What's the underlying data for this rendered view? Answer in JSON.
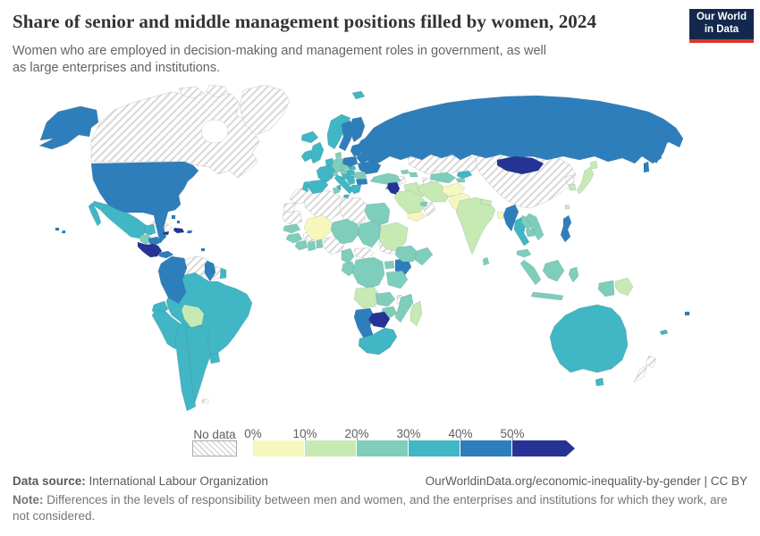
{
  "header": {
    "title": "Share of senior and middle management positions filled by women, 2024",
    "subtitle": "Women who are employed in decision-making and management roles in government, as well as large enterprises and institutions.",
    "logo": {
      "line1": "Our World",
      "line2": "in Data",
      "bg_color": "#12294d",
      "accent_color": "#d93a2b"
    }
  },
  "legend": {
    "no_data_label": "No data",
    "ticks": [
      "0%",
      "10%",
      "20%",
      "30%",
      "40%",
      "50%"
    ]
  },
  "footer": {
    "source_label": "Data source:",
    "source_value": " International Labour Organization",
    "link_text": "OurWorldinData.org/economic-inequality-by-gender | CC BY",
    "note_label": "Note:",
    "note_value": " Differences in the levels of responsibility between men and women, and the enterprises and institutions for which they work, are not considered."
  },
  "chart_data": {
    "type": "heatmap",
    "subtype": "world-choropleth",
    "title": "Share of senior and middle management positions filled by women, 2024",
    "unit": "%",
    "legend_position": "bottom",
    "bins": [
      {
        "id": "b0",
        "range": "0-10%",
        "color": "#f6f7bd"
      },
      {
        "id": "b1",
        "range": "10-20%",
        "color": "#c7e9b4"
      },
      {
        "id": "b2",
        "range": "20-30%",
        "color": "#7fcdbb"
      },
      {
        "id": "b3",
        "range": "30-40%",
        "color": "#41b6c4"
      },
      {
        "id": "b4",
        "range": "40-50%",
        "color": "#2e7ebc"
      },
      {
        "id": "b5",
        "range": "50%+",
        "color": "#253494"
      },
      {
        "id": "nodata",
        "range": "No data",
        "color": "hatch"
      }
    ],
    "countries_by_bin": {
      "b0": [
        "mali",
        "yemen",
        "afghanistan",
        "pakistan",
        "bangladesh"
      ],
      "b1": [
        "bolivia",
        "sudan",
        "angola",
        "madagascar",
        "saudi_arabia",
        "iraq",
        "iran",
        "india",
        "nepal",
        "japan",
        "hokkaido",
        "south_korea",
        "taiwan",
        "papua_new_guinea"
      ],
      "b2": [
        "germany",
        "denmark",
        "czechia",
        "austria",
        "switzerland",
        "romania",
        "turkey",
        "georgia",
        "azerbaijan",
        "tunisia",
        "egypt",
        "niger",
        "chad",
        "senegal",
        "guinea",
        "cote_divoire",
        "ghana",
        "togo_benin",
        "cameroon",
        "gabon_congo",
        "drc",
        "uganda",
        "tanzania",
        "ethiopia",
        "somalia",
        "zambia",
        "zimbabwe",
        "mozambique",
        "uzbekistan",
        "tajikistan",
        "vietnam",
        "laos",
        "cambodia",
        "malaysia",
        "indonesia_sumatra",
        "indonesia_borneo",
        "indonesia_java",
        "indonesia_sulawesi",
        "indonesia_papua",
        "sri_lanka",
        "uae",
        "cyprus",
        "guatemala"
      ],
      "b3": [
        "united_kingdom",
        "ireland",
        "iceland",
        "norway",
        "svalbard",
        "france",
        "spain",
        "portugal",
        "italy",
        "sicily",
        "sardinia",
        "greece",
        "hungary",
        "slovakia",
        "serbia",
        "croatia_bosnia",
        "netherlands_belgium",
        "mexico",
        "baja_california",
        "yucatan",
        "ecuador",
        "peru",
        "brazil",
        "chile",
        "argentina",
        "uruguay",
        "french_guiana",
        "south_africa",
        "australia",
        "tasmania",
        "thailand",
        "kyrgyzstan",
        "new_caledonia"
      ],
      "b4": [
        "usa",
        "alaska",
        "hawaii_1",
        "hawaii_2",
        "russia",
        "kamchatka",
        "sakhalin",
        "sweden",
        "finland",
        "poland",
        "baltics",
        "belarus",
        "ukraine",
        "bulgaria",
        "colombia",
        "guyana",
        "honduras",
        "panama",
        "puerto_rico",
        "bahamas_1",
        "bahamas_2",
        "trinidad",
        "kenya",
        "namibia",
        "myanmar",
        "philippines",
        "fiji"
      ],
      "b5": [
        "mongolia",
        "botswana",
        "jordan",
        "jamaica",
        "dominican_republic",
        "nicaragua_costa_rica"
      ],
      "nodata": [
        "canada",
        "arctic_islands_1",
        "arctic_islands_2",
        "greenland",
        "cuba",
        "venezuela",
        "suriname",
        "paraguay",
        "falklands",
        "morocco",
        "western_sahara",
        "mauritania",
        "algeria",
        "libya",
        "burkina_faso",
        "nigeria",
        "central_african_republic",
        "south_sudan",
        "malawi",
        "syria",
        "oman",
        "kazakhstan",
        "turkmenistan",
        "china",
        "north_korea",
        "new_zealand_north",
        "new_zealand_south"
      ]
    }
  }
}
